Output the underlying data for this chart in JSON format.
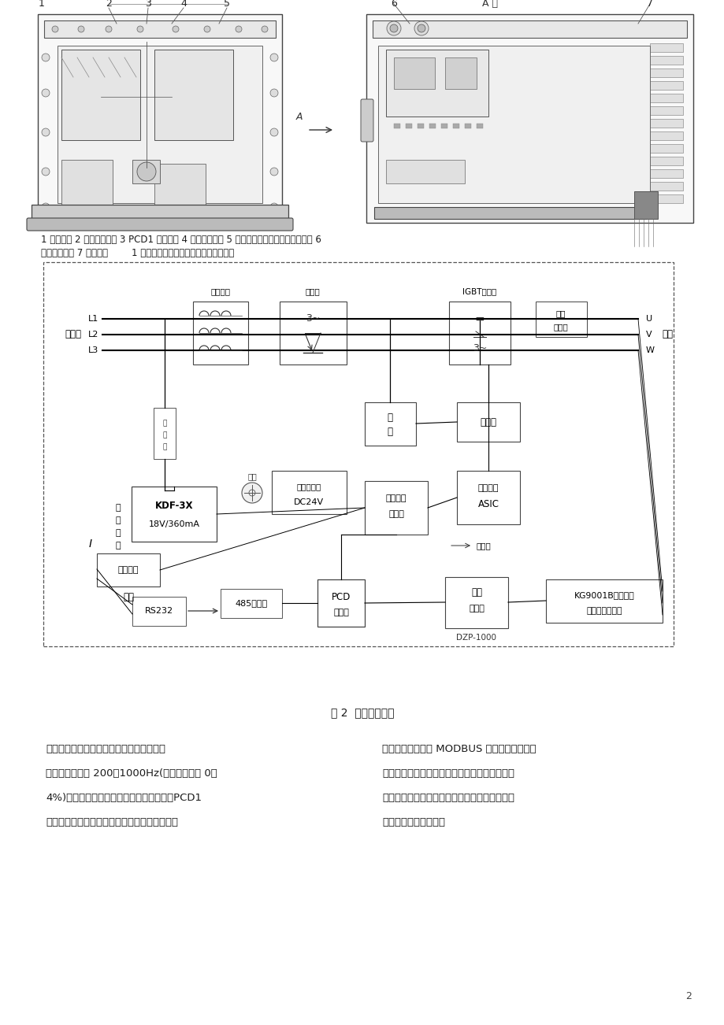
{
  "page_bg": "#ffffff",
  "page_num": "2",
  "caption1_line1": "1 隔爆箱体 2 进出线接线腔 3 PCD1 控制系统 4 变频控制系统 5 瓦斯信号采集、转换、处理单元 6",
  "caption1_line2": "人机操作界面 7 散热器图        1 矿用通风机自动变频调速装置结构简图",
  "fig2_caption": "图 2  控制内置系统",
  "body_left_col": [
    "瓦斯浓度传感器适时检测工作地点的瓦斯浓",
    "度，以频率信号 200～1000Hz(对应瓦斯浓度 0～",
    "4%)传递到频率转换器，转换成模拟信号，PCD1",
    "控制器对瓦斯浓度值及其变化进行分析、判断，"
  ],
  "body_right_col": [
    "处理后的信号通过 MODBUS 通讯方式与变频调",
    "速器的控制系统连接，控制变频器按以固化的程",
    "序改变输出频率，调节通风机转速，达到控制通",
    "风机输出风量的目的。"
  ],
  "font_size_caption": 8.5,
  "font_size_body": 9.5,
  "font_size_fig_caption": 10,
  "text_color": "#1a1a1a"
}
